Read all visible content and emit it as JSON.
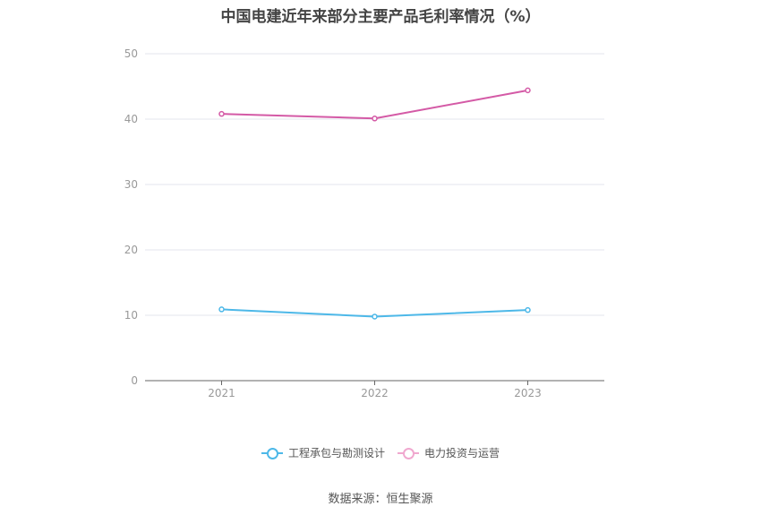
{
  "chart_data": {
    "type": "line",
    "title": "中国电建近年来部分主要产品毛利率情况（%）",
    "categories": [
      "2021",
      "2022",
      "2023"
    ],
    "ylim": [
      0,
      50
    ],
    "yticks": [
      "0",
      "10",
      "20",
      "30",
      "40",
      "50"
    ],
    "grid": true,
    "legend_position": "bottom",
    "series": [
      {
        "name": "工程承包与勘测设计",
        "values": [
          10.9,
          9.8,
          10.8
        ],
        "color": "#4db8e8"
      },
      {
        "name": "电力投资与运营",
        "values": [
          40.8,
          40.1,
          44.4
        ],
        "color": "#d45aa6"
      }
    ]
  },
  "legend": {
    "items": [
      {
        "label": "工程承包与勘测设计",
        "color": "#4db8e8"
      },
      {
        "label": "电力投资与运营",
        "color": "#f0a8cf"
      }
    ]
  },
  "source": "数据来源：恒生聚源"
}
